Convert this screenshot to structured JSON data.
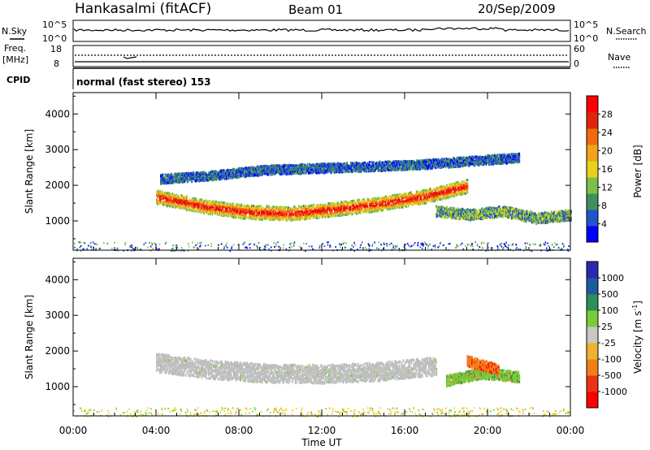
{
  "header": {
    "station": "Hankasalmi (fitACF)",
    "beam": "Beam 01",
    "date": "20/Sep/2009"
  },
  "strip_panels": {
    "nsky": {
      "left_label": "N.Sky",
      "right_label": "N.Search",
      "left_ticks": [
        "10^5",
        "10^0"
      ],
      "right_ticks": [
        "10^5",
        "10^0"
      ]
    },
    "freq": {
      "left_label_line1": "Freq.",
      "left_label_line2": "[MHz]",
      "right_label": "Nave",
      "left_ticks": [
        "18",
        "8"
      ],
      "right_ticks": [
        "60",
        "0"
      ]
    },
    "cpid": {
      "label": "CPID",
      "text": "normal (fast stereo) 153"
    }
  },
  "colors": {
    "power_scale": [
      "#0000ff",
      "#2255cc",
      "#3f8f5f",
      "#7cc04a",
      "#e6d21a",
      "#f4a219",
      "#f26a0f",
      "#e0260a",
      "#ff0000"
    ],
    "velocity_scale": [
      "#ff0000",
      "#ee3311",
      "#f07f1a",
      "#f0b030",
      "#c8c8c0",
      "#78cc3a",
      "#2e8f5a",
      "#1e5aa0",
      "#2a2ab0"
    ],
    "ground_scatter": "#bebebe"
  },
  "chart_data": [
    {
      "type": "heatmap",
      "name": "power-panel",
      "title": "",
      "xlabel": "Time UT",
      "ylabel": "Slant Range [km]",
      "xlim": [
        0,
        24
      ],
      "ylim": [
        180,
        4600
      ],
      "x_ticks": [
        "00:00",
        "04:00",
        "08:00",
        "12:00",
        "16:00",
        "20:00",
        "00:00"
      ],
      "y_ticks": [
        "1000",
        "2000",
        "3000",
        "4000"
      ],
      "colorbar": {
        "label": "Power [dB]",
        "ticks": [
          "4",
          "8",
          "12",
          "16",
          "20",
          "24",
          "28"
        ],
        "range": [
          0,
          30
        ]
      },
      "approximate_bands": [
        {
          "t_start": 4.0,
          "t_end": 19.0,
          "range_center": [
            1700,
            1450,
            1280,
            1230,
            1350,
            1500,
            1700,
            2000
          ],
          "value": "high (24-30 dB)"
        },
        {
          "t_start": 4.2,
          "t_end": 21.5,
          "range_center": [
            2200,
            2300,
            2450,
            2500,
            2550,
            2600,
            2700,
            2800
          ],
          "value": "low (4-10 dB)"
        },
        {
          "t_start": 17.5,
          "t_end": 24.0,
          "range_center": [
            1300,
            1200,
            1300,
            1100,
            1200
          ],
          "value": "mixed (4-20 dB)"
        }
      ]
    },
    {
      "type": "heatmap",
      "name": "velocity-panel",
      "title": "",
      "xlabel": "Time UT",
      "ylabel": "Slant Range [km]",
      "xlim": [
        0,
        24
      ],
      "ylim": [
        180,
        4600
      ],
      "x_ticks": [
        "00:00",
        "04:00",
        "08:00",
        "12:00",
        "16:00",
        "20:00",
        "00:00"
      ],
      "y_ticks": [
        "1000",
        "2000",
        "3000",
        "4000"
      ],
      "colorbar": {
        "label": "Velocity [m s^-1]",
        "ticks": [
          "1000",
          "500",
          "100",
          "25",
          "-25",
          "-100",
          "-500",
          "-1000"
        ],
        "range": [
          -1000,
          1000
        ]
      },
      "approximate_bands": [
        {
          "t_start": 4.0,
          "t_end": 17.5,
          "range_center": [
            1700,
            1500,
            1400,
            1380,
            1450,
            1600
          ],
          "value": "ground scatter (grey)"
        },
        {
          "t_start": 18.0,
          "t_end": 21.5,
          "range_center": [
            1200,
            1400,
            1300
          ],
          "value": "positive (100-500)"
        },
        {
          "t_start": 19.0,
          "t_end": 20.5,
          "range_center": [
            1750,
            1500
          ],
          "value": "negative (-100 to -500)"
        }
      ]
    }
  ]
}
